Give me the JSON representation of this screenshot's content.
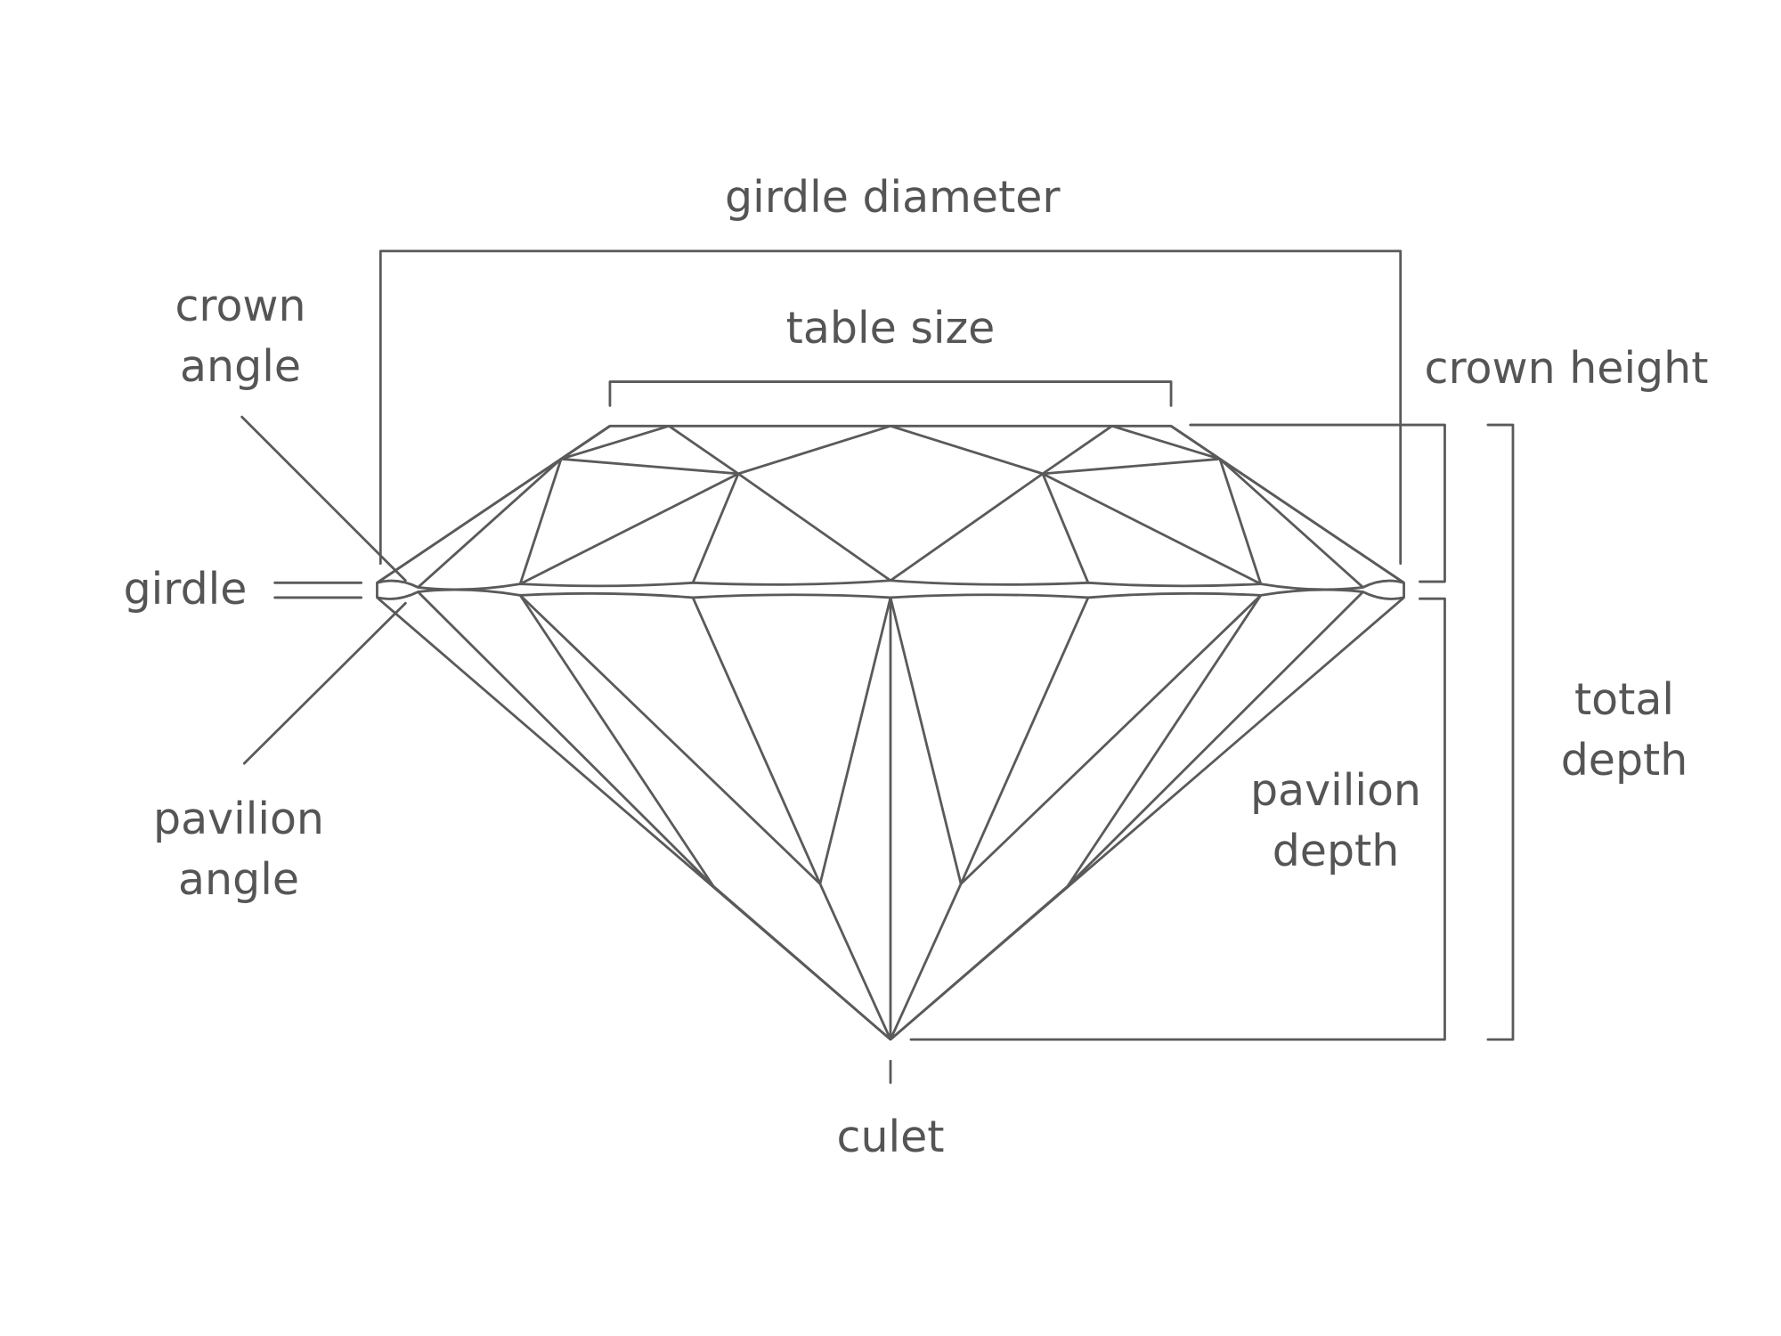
{
  "colors": {
    "line": "#5a5a5a",
    "text": "#555555",
    "background": "#ffffff"
  },
  "labels": {
    "girdle_diameter": "girdle diameter",
    "table_size": "table size",
    "crown_angle": [
      "crown",
      "angle"
    ],
    "crown_height": "crown height",
    "girdle": "girdle",
    "pavilion_angle": [
      "pavilion",
      "angle"
    ],
    "pavilion_depth": [
      "pavilion",
      "depth"
    ],
    "total_depth": [
      "total",
      "depth"
    ],
    "culet": "culet"
  }
}
